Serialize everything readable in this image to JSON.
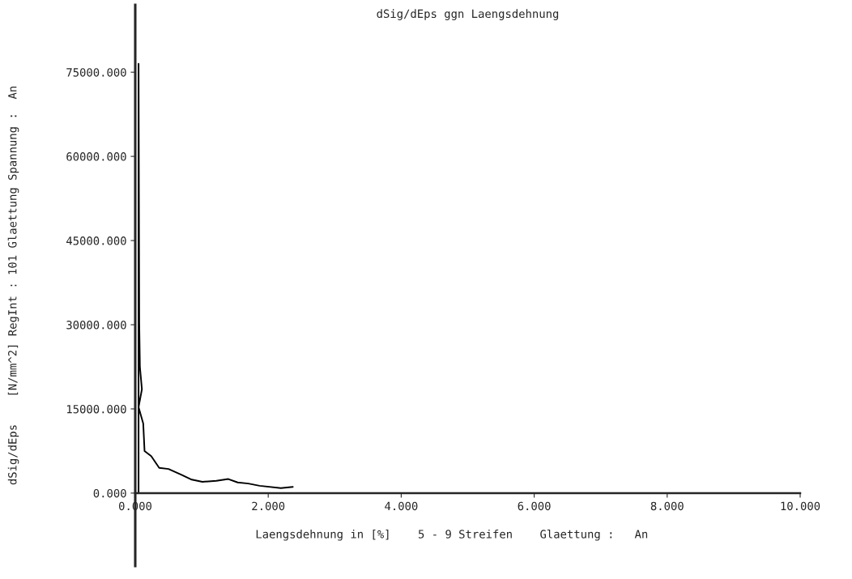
{
  "chart_data": {
    "type": "line",
    "title": "dSig/dEps ggn Laengsdehnung",
    "xlabel": "Laengsdehnung in [%]    5 - 9 Streifen    Glaettung :   An",
    "ylabel": "dSig/dEps    [N/mm^2] RegInt : 101 Glaettung Spannung :  An",
    "series": [
      {
        "color": "#000000",
        "x": [
          0.05,
          0.05,
          0.06,
          0.07,
          0.1,
          0.05,
          0.12,
          0.14,
          0.24,
          0.36,
          0.5,
          0.69,
          0.85,
          1.01,
          1.22,
          1.4,
          1.54,
          1.7,
          1.87,
          2.19,
          2.37
        ],
        "values": [
          0,
          76500,
          30300,
          22500,
          18500,
          15300,
          12400,
          7500,
          6600,
          4500,
          4300,
          3300,
          2400,
          2000,
          2200,
          2500,
          1900,
          1700,
          1300,
          900,
          1100
        ]
      }
    ],
    "xlim": [
      0,
      10
    ],
    "ylim": [
      -13000,
      87000
    ],
    "xticks": [
      {
        "value": 0,
        "label": "0.000"
      },
      {
        "value": 2,
        "label": "2.000"
      },
      {
        "value": 4,
        "label": "4.000"
      },
      {
        "value": 6,
        "label": "6.000"
      },
      {
        "value": 8,
        "label": "8.000"
      },
      {
        "value": 10,
        "label": "10.000"
      }
    ],
    "yticks": [
      {
        "value": 0,
        "label": "0.000"
      },
      {
        "value": 15000,
        "label": "15000.000"
      },
      {
        "value": 30000,
        "label": "30000.000"
      },
      {
        "value": 45000,
        "label": "45000.000"
      },
      {
        "value": 60000,
        "label": "60000.000"
      },
      {
        "value": 75000,
        "label": "75000.000"
      }
    ],
    "grid": false
  }
}
